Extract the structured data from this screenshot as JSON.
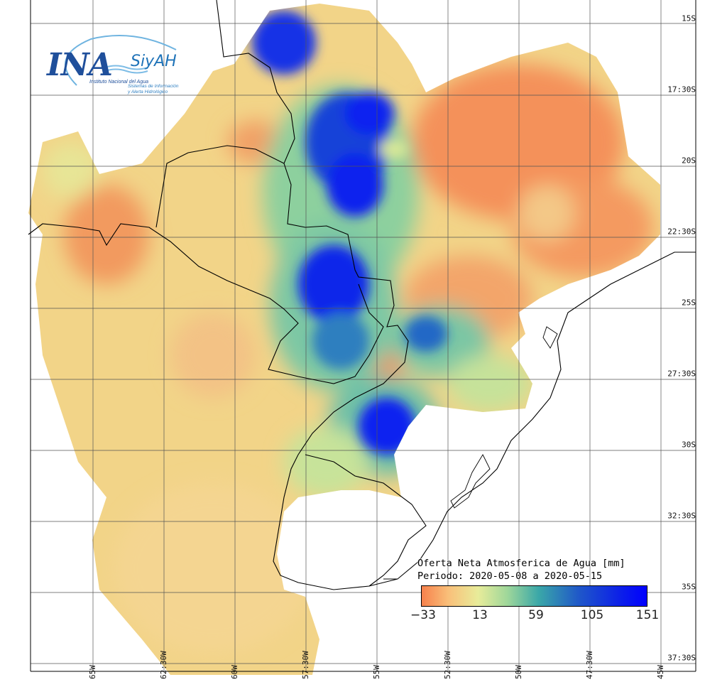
{
  "map": {
    "lat_labels": [
      "15S",
      "17:30S",
      "20S",
      "22:30S",
      "25S",
      "27:30S",
      "30S",
      "32:30S",
      "35S",
      "37:30S"
    ],
    "lon_labels": [
      "65W",
      "62:30W",
      "60W",
      "57:30W",
      "55W",
      "52:30W",
      "50W",
      "47:30W",
      "45W"
    ],
    "colors": {
      "grid": "#555555",
      "border": "#000000",
      "low": "#f7814c",
      "mid": "#e8ec9a",
      "high": "#0000ff"
    }
  },
  "logo": {
    "ina": "INA",
    "siyah": "SiyAH",
    "institute": "Instituto Nacional del Agua",
    "system_line1": "Sistemas de Información",
    "system_line2": "y Alerta Hidrológico"
  },
  "legend": {
    "title": "Oferta Neta Atmosferica de Agua [mm]",
    "period": "Periodo: 2020-05-08 a 2020-05-15",
    "ticks": [
      "−33",
      "13",
      "59",
      "105",
      "151"
    ]
  }
}
